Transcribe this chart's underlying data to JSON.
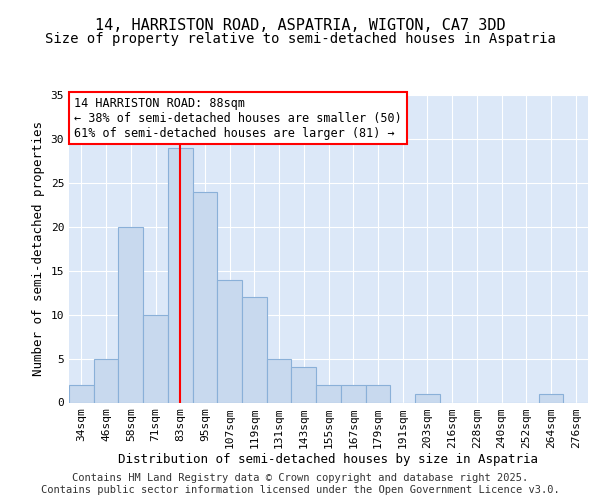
{
  "title": "14, HARRISTON ROAD, ASPATRIA, WIGTON, CA7 3DD",
  "subtitle": "Size of property relative to semi-detached houses in Aspatria",
  "xlabel": "Distribution of semi-detached houses by size in Aspatria",
  "ylabel": "Number of semi-detached properties",
  "categories": [
    "34sqm",
    "46sqm",
    "58sqm",
    "71sqm",
    "83sqm",
    "95sqm",
    "107sqm",
    "119sqm",
    "131sqm",
    "143sqm",
    "155sqm",
    "167sqm",
    "179sqm",
    "191sqm",
    "203sqm",
    "216sqm",
    "228sqm",
    "240sqm",
    "252sqm",
    "264sqm",
    "276sqm"
  ],
  "values": [
    2,
    5,
    20,
    10,
    29,
    24,
    14,
    12,
    5,
    4,
    2,
    2,
    2,
    0,
    1,
    0,
    0,
    0,
    0,
    1,
    0
  ],
  "bar_color": "#c8d9ee",
  "bar_edge_color": "#8ab0d8",
  "vline_x_index": 4,
  "vline_color": "red",
  "annotation_text_line1": "14 HARRISTON ROAD: 88sqm",
  "annotation_text_line2": "← 38% of semi-detached houses are smaller (50)",
  "annotation_text_line3": "61% of semi-detached houses are larger (81) →",
  "annotation_box_color": "white",
  "annotation_box_edge_color": "red",
  "ylim": [
    0,
    35
  ],
  "yticks": [
    0,
    5,
    10,
    15,
    20,
    25,
    30,
    35
  ],
  "background_color": "#ffffff",
  "plot_bg_color": "#dce8f8",
  "grid_color": "#ffffff",
  "footer_text": "Contains HM Land Registry data © Crown copyright and database right 2025.\nContains public sector information licensed under the Open Government Licence v3.0.",
  "title_fontsize": 11,
  "subtitle_fontsize": 10,
  "xlabel_fontsize": 9,
  "ylabel_fontsize": 9,
  "tick_fontsize": 8,
  "annotation_fontsize": 8.5,
  "footer_fontsize": 7.5
}
